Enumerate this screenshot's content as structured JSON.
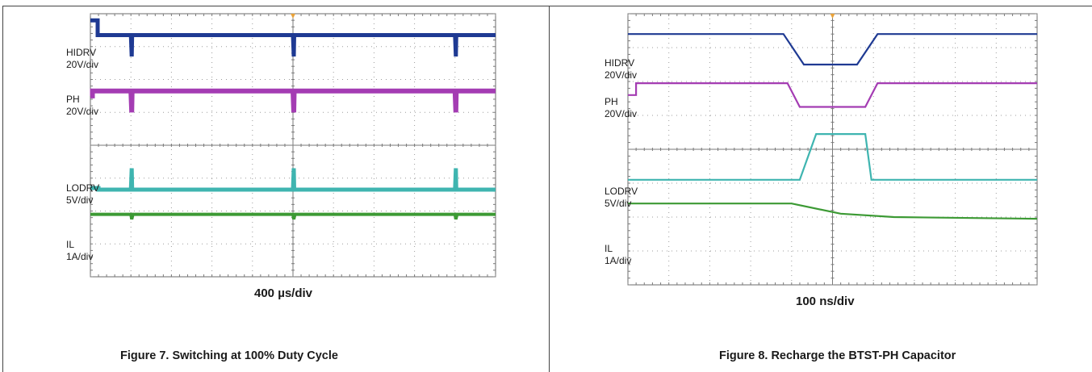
{
  "page": {
    "header_fragment": ""
  },
  "colors": {
    "hidrv": "#1f3a93",
    "ph": "#a43db3",
    "lodrv": "#3fb5b0",
    "il": "#3d9a35",
    "grid": "#9c9c9c",
    "trigger_marker": "#e8a23a"
  },
  "figures": [
    {
      "id": "figure-7",
      "caption": "Figure 7. Switching at 100% Duty Cycle",
      "timebase": "400 µs/div",
      "channels": [
        {
          "name": "HIDRV",
          "scale": "20V/div"
        },
        {
          "name": "PH",
          "scale": "20V/div"
        },
        {
          "name": "LODRV",
          "scale": "5V/div"
        },
        {
          "name": "IL",
          "scale": "1A/div"
        }
      ]
    },
    {
      "id": "figure-8",
      "caption": "Figure 8. Recharge the BTST-PH Capacitor",
      "timebase": "100 ns/div",
      "channels": [
        {
          "name": "HIDRV",
          "scale": "20V/div"
        },
        {
          "name": "PH",
          "scale": "20V/div"
        },
        {
          "name": "LODRV",
          "scale": "5V/div"
        },
        {
          "name": "IL",
          "scale": "1A/div"
        }
      ]
    }
  ],
  "chart_data": [
    {
      "type": "line",
      "title": "Figure 7. Switching at 100% Duty Cycle",
      "xlabel": "400 µs/div",
      "ylabel": "",
      "grid": true,
      "x_divisions": 10,
      "y_divisions": 8,
      "xlim": [
        0,
        10
      ],
      "ylim": [
        0,
        8
      ],
      "series": [
        {
          "name": "HIDRV",
          "scale": "20V/div",
          "x": [
            0,
            0.18,
            0.18,
            0.38,
            0.38,
            1.0,
            1.02,
            1.03,
            1.04,
            5.0,
            5.02,
            5.03,
            5.04,
            9.0,
            9.02,
            9.03,
            9.04,
            10
          ],
          "y": [
            7.8,
            7.8,
            7.35,
            7.35,
            7.35,
            7.35,
            6.7,
            7.35,
            7.35,
            7.35,
            6.7,
            7.35,
            7.35,
            7.35,
            6.7,
            7.35,
            7.35,
            7.35
          ]
        },
        {
          "name": "PH",
          "scale": "20V/div",
          "x": [
            0,
            0.05,
            0.05,
            1.0,
            1.02,
            1.03,
            1.04,
            5.0,
            5.02,
            5.03,
            5.04,
            9.0,
            9.02,
            9.03,
            9.04,
            10
          ],
          "y": [
            5.5,
            5.5,
            5.65,
            5.65,
            5.0,
            5.65,
            5.65,
            5.65,
            5.0,
            5.65,
            5.65,
            5.65,
            5.0,
            5.65,
            5.65,
            5.65
          ]
        },
        {
          "name": "LODRV",
          "scale": "5V/div",
          "x": [
            0,
            0.2,
            0.2,
            1.0,
            1.02,
            1.03,
            1.04,
            5.0,
            5.02,
            5.03,
            5.04,
            9.0,
            9.02,
            9.03,
            9.04,
            10
          ],
          "y": [
            2.7,
            2.7,
            2.65,
            2.65,
            3.3,
            2.65,
            2.65,
            2.65,
            3.3,
            2.65,
            2.65,
            2.65,
            3.3,
            2.65,
            2.65,
            2.65
          ]
        },
        {
          "name": "IL",
          "scale": "1A/div",
          "x": [
            0,
            1.0,
            1.02,
            1.05,
            5.0,
            5.02,
            5.05,
            9.0,
            9.02,
            9.05,
            10
          ],
          "y": [
            1.9,
            1.9,
            1.75,
            1.9,
            1.9,
            1.75,
            1.9,
            1.9,
            1.75,
            1.9,
            1.9
          ]
        }
      ]
    },
    {
      "type": "line",
      "title": "Figure 8. Recharge the BTST-PH Capacitor",
      "xlabel": "100 ns/div",
      "ylabel": "",
      "grid": true,
      "x_divisions": 10,
      "y_divisions": 8,
      "xlim": [
        0,
        10
      ],
      "ylim": [
        0,
        8
      ],
      "series": [
        {
          "name": "HIDRV",
          "scale": "20V/div",
          "x": [
            0,
            3.8,
            4.3,
            5.6,
            6.1,
            10
          ],
          "y": [
            7.4,
            7.4,
            6.5,
            6.5,
            7.4,
            7.4
          ]
        },
        {
          "name": "PH",
          "scale": "20V/div",
          "x": [
            0,
            0.2,
            0.2,
            3.9,
            4.2,
            5.8,
            6.1,
            10
          ],
          "y": [
            5.6,
            5.6,
            5.95,
            5.95,
            5.25,
            5.25,
            5.95,
            5.95
          ]
        },
        {
          "name": "LODRV",
          "scale": "5V/div",
          "x": [
            0,
            0.25,
            0.25,
            4.2,
            4.6,
            5.8,
            5.95,
            10
          ],
          "y": [
            3.1,
            3.1,
            3.1,
            3.1,
            4.45,
            4.45,
            3.1,
            3.1
          ]
        },
        {
          "name": "IL",
          "scale": "1A/div",
          "x": [
            0,
            4.0,
            5.2,
            6.5,
            10
          ],
          "y": [
            2.4,
            2.4,
            2.1,
            2.0,
            1.95
          ]
        }
      ]
    }
  ]
}
